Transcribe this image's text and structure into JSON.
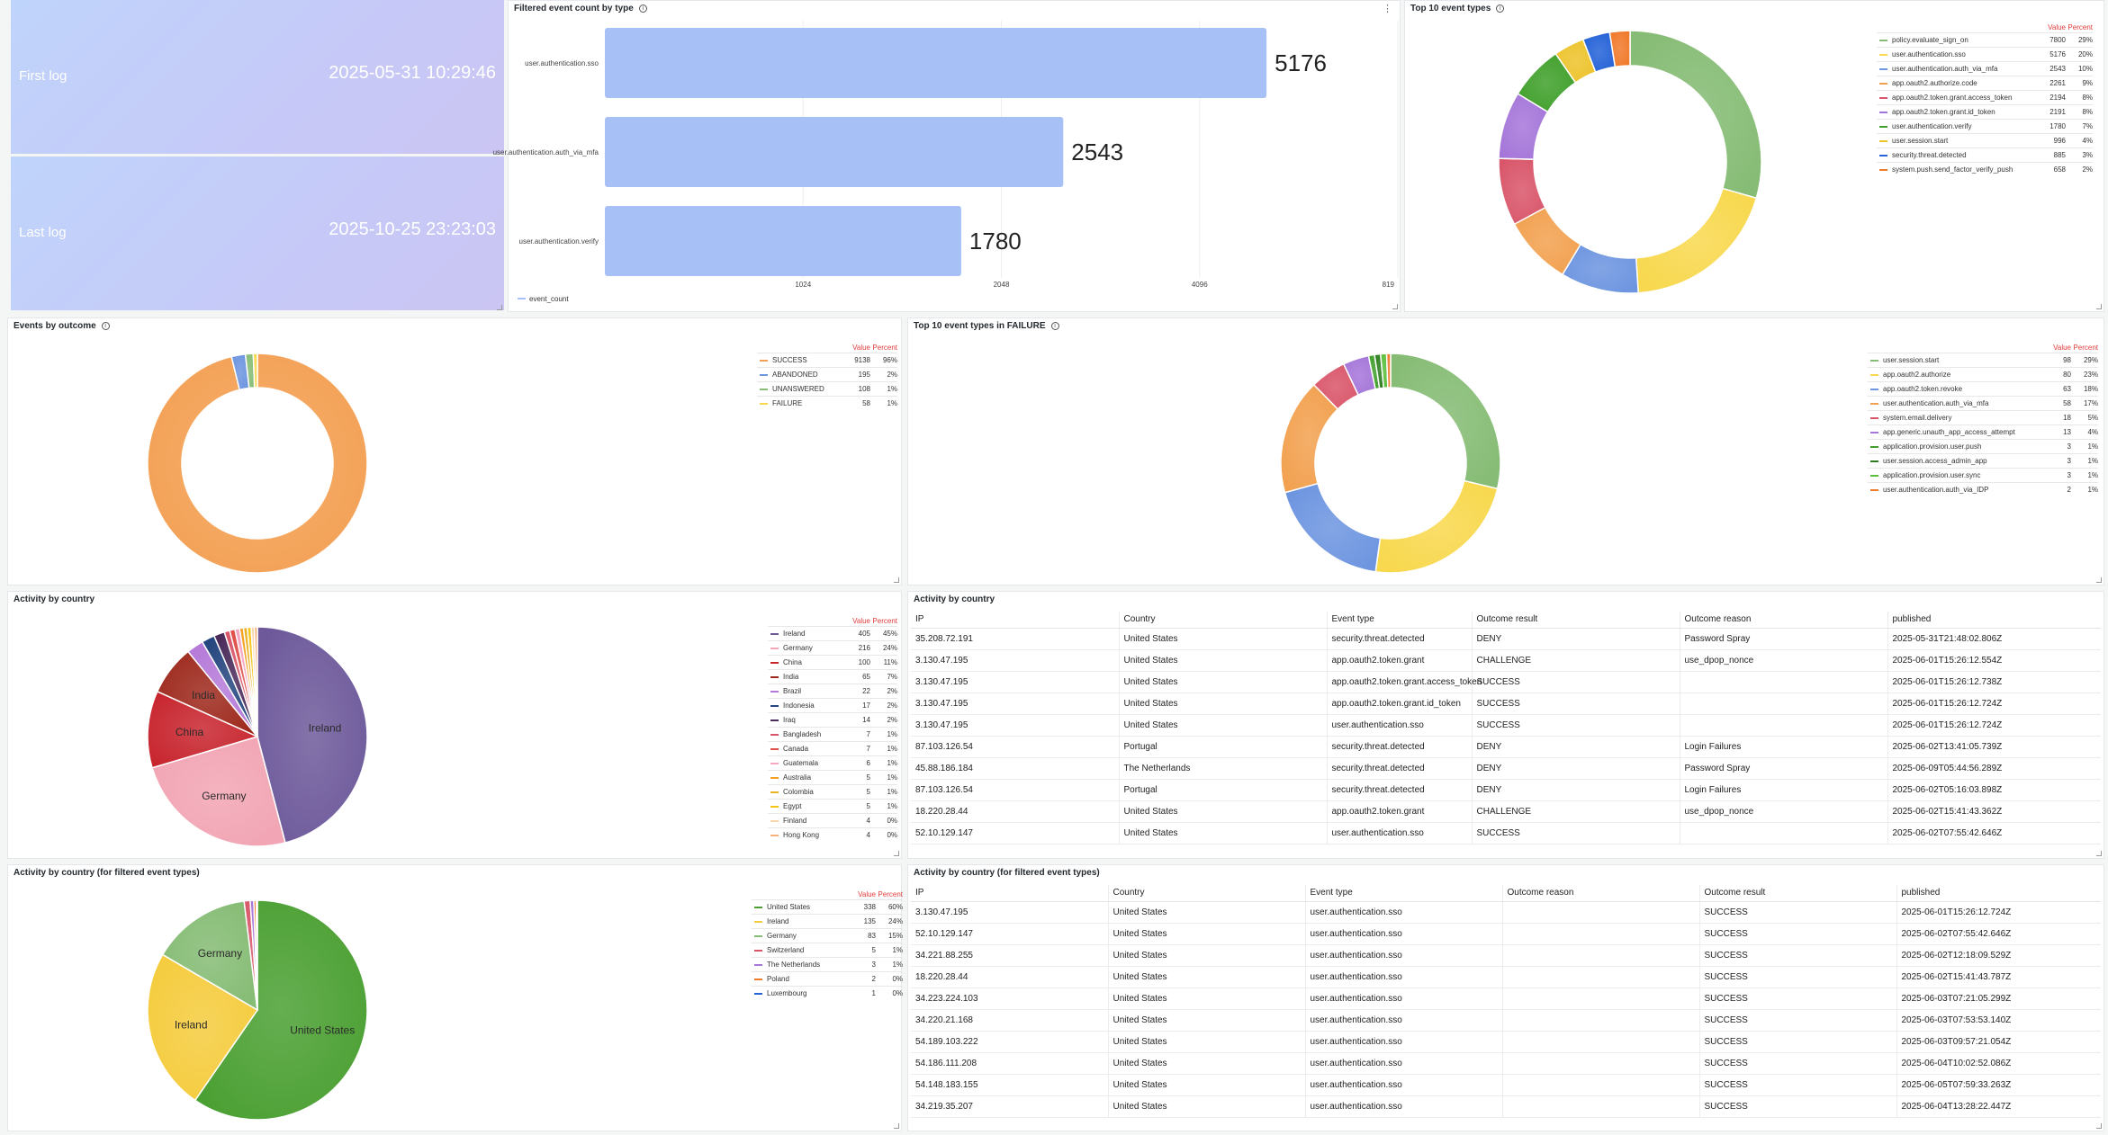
{
  "stats": {
    "first": {
      "label": "First log",
      "value": "2025-05-31 10:29:46"
    },
    "last": {
      "label": "Last log",
      "value": "2025-10-25 23:23:03"
    }
  },
  "legend_headers": {
    "value": "Value",
    "percent": "Percent"
  },
  "bar_panel": {
    "title": "Filtered event count by type",
    "chart_data": {
      "type": "bar",
      "orientation": "horizontal",
      "categories": [
        "user.authentication.sso",
        "user.authentication.auth_via_mfa",
        "user.authentication.verify"
      ],
      "values": [
        5176,
        2543,
        1780
      ],
      "xticks": [
        "1024",
        "2048",
        "4096",
        "819"
      ],
      "xlim": [
        512,
        8192
      ],
      "scale": "log2",
      "legend": "event_count",
      "color": "#a7c1f7"
    }
  },
  "top10": {
    "title": "Top 10 event types",
    "chart_data": {
      "type": "pie",
      "donut": true,
      "items": [
        {
          "name": "policy.evaluate_sign_on",
          "value": 7800,
          "percent": "29%",
          "color": "#86bc75"
        },
        {
          "name": "user.authentication.sso",
          "value": 5176,
          "percent": "20%",
          "color": "#f8d84e"
        },
        {
          "name": "user.authentication.auth_via_mfa",
          "value": 2543,
          "percent": "10%",
          "color": "#6d95e0"
        },
        {
          "name": "app.oauth2.authorize.code",
          "value": 2261,
          "percent": "9%",
          "color": "#f2a150"
        },
        {
          "name": "app.oauth2.token.grant.access_token",
          "value": 2194,
          "percent": "8%",
          "color": "#d9566a"
        },
        {
          "name": "app.oauth2.token.grant.id_token",
          "value": 2191,
          "percent": "8%",
          "color": "#a576d9"
        },
        {
          "name": "user.authentication.verify",
          "value": 1780,
          "percent": "7%",
          "color": "#40a02b"
        },
        {
          "name": "user.session.start",
          "value": 996,
          "percent": "4%",
          "color": "#edc32c"
        },
        {
          "name": "security.threat.detected",
          "value": 885,
          "percent": "3%",
          "color": "#2563d8"
        },
        {
          "name": "system.push.send_factor_verify_push",
          "value": 658,
          "percent": "2%",
          "color": "#f07a2c"
        }
      ]
    }
  },
  "outcome": {
    "title": "Events by outcome",
    "chart_data": {
      "type": "pie",
      "donut": true,
      "items": [
        {
          "name": "SUCCESS",
          "value": 9138,
          "percent": "96%",
          "color": "#f4a155"
        },
        {
          "name": "ABANDONED",
          "value": 195,
          "percent": "2%",
          "color": "#6d95e0"
        },
        {
          "name": "UNANSWERED",
          "value": 108,
          "percent": "1%",
          "color": "#86bc75"
        },
        {
          "name": "FAILURE",
          "value": 58,
          "percent": "1%",
          "color": "#f8d84e"
        }
      ]
    }
  },
  "failure": {
    "title": "Top 10 event types in FAILURE",
    "chart_data": {
      "type": "pie",
      "donut": true,
      "items": [
        {
          "name": "user.session.start",
          "value": 98,
          "percent": "29%",
          "color": "#86bc75"
        },
        {
          "name": "app.oauth2.authorize",
          "value": 80,
          "percent": "23%",
          "color": "#f8d84e"
        },
        {
          "name": "app.oauth2.token.revoke",
          "value": 63,
          "percent": "18%",
          "color": "#6d95e0"
        },
        {
          "name": "user.authentication.auth_via_mfa",
          "value": 58,
          "percent": "17%",
          "color": "#f2a150"
        },
        {
          "name": "system.email.delivery",
          "value": 18,
          "percent": "5%",
          "color": "#d9566a"
        },
        {
          "name": "app.generic.unauth_app_access_attempt",
          "value": 13,
          "percent": "4%",
          "color": "#a576d9"
        },
        {
          "name": "application.provision.user.push",
          "value": 3,
          "percent": "1%",
          "color": "#40a02b"
        },
        {
          "name": "user.session.access_admin_app",
          "value": 3,
          "percent": "1%",
          "color": "#2d7d1e"
        },
        {
          "name": "application.provision.user.sync",
          "value": 3,
          "percent": "1%",
          "color": "#5bbf3c"
        },
        {
          "name": "user.authentication.auth_via_IDP",
          "value": 2,
          "percent": "1%",
          "color": "#f07a2c"
        }
      ]
    }
  },
  "country": {
    "title": "Activity by country",
    "chart_data": {
      "type": "pie",
      "items": [
        {
          "name": "Ireland",
          "value": 405,
          "percent": "45%",
          "color": "#6e5a9b",
          "inside": true
        },
        {
          "name": "Germany",
          "value": 216,
          "percent": "24%",
          "color": "#f2a5b4",
          "inside": true
        },
        {
          "name": "China",
          "value": 100,
          "percent": "11%",
          "color": "#c8262f",
          "inside": true
        },
        {
          "name": "India",
          "value": 65,
          "percent": "7%",
          "color": "#9e2a1e",
          "inside": true
        },
        {
          "name": "Brazil",
          "value": 22,
          "percent": "2%",
          "color": "#b57ad8"
        },
        {
          "name": "Indonesia",
          "value": 17,
          "percent": "2%",
          "color": "#24457e"
        },
        {
          "name": "Iraq",
          "value": 14,
          "percent": "2%",
          "color": "#4a2a5a"
        },
        {
          "name": "Bangladesh",
          "value": 7,
          "percent": "1%",
          "color": "#d9566a"
        },
        {
          "name": "Canada",
          "value": 7,
          "percent": "1%",
          "color": "#e0504a"
        },
        {
          "name": "Guatemala",
          "value": 6,
          "percent": "1%",
          "color": "#f4a6c2"
        },
        {
          "name": "Australia",
          "value": 5,
          "percent": "1%",
          "color": "#f2a020"
        },
        {
          "name": "Colombia",
          "value": 5,
          "percent": "1%",
          "color": "#e9b020"
        },
        {
          "name": "Egypt",
          "value": 5,
          "percent": "1%",
          "color": "#f5c518"
        },
        {
          "name": "Finland",
          "value": 4,
          "percent": "0%",
          "color": "#f7d6a8"
        },
        {
          "name": "Hong Kong",
          "value": 4,
          "percent": "0%",
          "color": "#f6b27a"
        }
      ]
    }
  },
  "country_filtered": {
    "title": "Activity by country (for filtered event types)",
    "chart_data": {
      "type": "pie",
      "items": [
        {
          "name": "United States",
          "value": 338,
          "percent": "60%",
          "color": "#4ba033",
          "inside": true
        },
        {
          "name": "Ireland",
          "value": 135,
          "percent": "24%",
          "color": "#f5cc3e",
          "inside": true
        },
        {
          "name": "Germany",
          "value": 83,
          "percent": "15%",
          "color": "#86bc75",
          "inside": true
        },
        {
          "name": "Switzerland",
          "value": 5,
          "percent": "1%",
          "color": "#d9566a"
        },
        {
          "name": "The Netherlands",
          "value": 3,
          "percent": "1%",
          "color": "#a576d9"
        },
        {
          "name": "Poland",
          "value": 2,
          "percent": "0%",
          "color": "#f07a2c"
        },
        {
          "name": "Luxembourg",
          "value": 1,
          "percent": "0%",
          "color": "#2563d8"
        }
      ]
    }
  },
  "table1": {
    "title": "Activity by country",
    "columns": [
      "IP",
      "Country",
      "Event type",
      "Outcome result",
      "Outcome reason",
      "published"
    ],
    "rows": [
      [
        "35.208.72.191",
        "United States",
        "security.threat.detected",
        "DENY",
        "Password Spray",
        "2025-05-31T21:48:02.806Z"
      ],
      [
        "3.130.47.195",
        "United States",
        "app.oauth2.token.grant",
        "CHALLENGE",
        "use_dpop_nonce",
        "2025-06-01T15:26:12.554Z"
      ],
      [
        "3.130.47.195",
        "United States",
        "app.oauth2.token.grant.access_token",
        "SUCCESS",
        "",
        "2025-06-01T15:26:12.738Z"
      ],
      [
        "3.130.47.195",
        "United States",
        "app.oauth2.token.grant.id_token",
        "SUCCESS",
        "",
        "2025-06-01T15:26:12.724Z"
      ],
      [
        "3.130.47.195",
        "United States",
        "user.authentication.sso",
        "SUCCESS",
        "",
        "2025-06-01T15:26:12.724Z"
      ],
      [
        "87.103.126.54",
        "Portugal",
        "security.threat.detected",
        "DENY",
        "Login Failures",
        "2025-06-02T13:41:05.739Z"
      ],
      [
        "45.88.186.184",
        "The Netherlands",
        "security.threat.detected",
        "DENY",
        "Password Spray",
        "2025-06-09T05:44:56.289Z"
      ],
      [
        "87.103.126.54",
        "Portugal",
        "security.threat.detected",
        "DENY",
        "Login Failures",
        "2025-06-02T05:16:03.898Z"
      ],
      [
        "18.220.28.44",
        "United States",
        "app.oauth2.token.grant",
        "CHALLENGE",
        "use_dpop_nonce",
        "2025-06-02T15:41:43.362Z"
      ],
      [
        "52.10.129.147",
        "United States",
        "user.authentication.sso",
        "SUCCESS",
        "",
        "2025-06-02T07:55:42.646Z"
      ]
    ]
  },
  "table2": {
    "title": "Activity by country (for filtered event types)",
    "columns": [
      "IP",
      "Country",
      "Event type",
      "Outcome reason",
      "Outcome result",
      "published"
    ],
    "rows": [
      [
        "3.130.47.195",
        "United States",
        "user.authentication.sso",
        "",
        "SUCCESS",
        "2025-06-01T15:26:12.724Z"
      ],
      [
        "52.10.129.147",
        "United States",
        "user.authentication.sso",
        "",
        "SUCCESS",
        "2025-06-02T07:55:42.646Z"
      ],
      [
        "34.221.88.255",
        "United States",
        "user.authentication.sso",
        "",
        "SUCCESS",
        "2025-06-02T12:18:09.529Z"
      ],
      [
        "18.220.28.44",
        "United States",
        "user.authentication.sso",
        "",
        "SUCCESS",
        "2025-06-02T15:41:43.787Z"
      ],
      [
        "34.223.224.103",
        "United States",
        "user.authentication.sso",
        "",
        "SUCCESS",
        "2025-06-03T07:21:05.299Z"
      ],
      [
        "34.220.21.168",
        "United States",
        "user.authentication.sso",
        "",
        "SUCCESS",
        "2025-06-03T07:53:53.140Z"
      ],
      [
        "54.189.103.222",
        "United States",
        "user.authentication.sso",
        "",
        "SUCCESS",
        "2025-06-03T09:57:21.054Z"
      ],
      [
        "54.186.111.208",
        "United States",
        "user.authentication.sso",
        "",
        "SUCCESS",
        "2025-06-04T10:02:52.086Z"
      ],
      [
        "54.148.183.155",
        "United States",
        "user.authentication.sso",
        "",
        "SUCCESS",
        "2025-06-05T07:59:33.263Z"
      ],
      [
        "34.219.35.207",
        "United States",
        "user.authentication.sso",
        "",
        "SUCCESS",
        "2025-06-04T13:28:22.447Z"
      ]
    ]
  }
}
